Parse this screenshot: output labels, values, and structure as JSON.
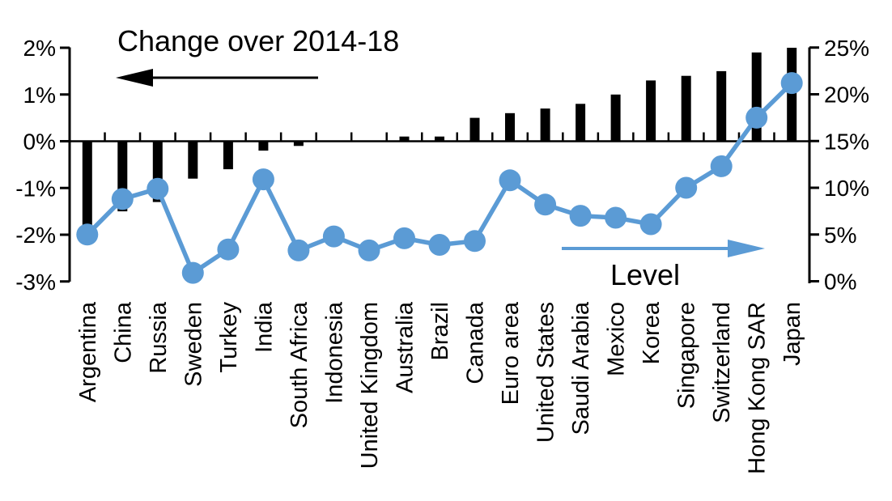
{
  "chart_data": {
    "type": "bar",
    "subtype": "bar-line-combo-dual-axis",
    "title": "",
    "categories": [
      "Argentina",
      "China",
      "Russia",
      "Sweden",
      "Turkey",
      "India",
      "South Africa",
      "Indonesia",
      "United Kingdom",
      "Australia",
      "Brazil",
      "Canada",
      "Euro area",
      "United States",
      "Saudi Arabia",
      "Mexico",
      "Korea",
      "Singapore",
      "Switzerland",
      "Hong Kong SAR",
      "Japan"
    ],
    "series": [
      {
        "name": "Change over 2014-18",
        "type": "bar",
        "axis": "left",
        "color": "#000000",
        "values": [
          -1.8,
          -1.5,
          -1.3,
          -0.8,
          -0.6,
          -0.2,
          -0.1,
          0,
          0,
          0.1,
          0.1,
          0.5,
          0.6,
          0.7,
          0.8,
          1.0,
          1.3,
          1.4,
          1.5,
          1.9,
          2.0
        ]
      },
      {
        "name": "Level",
        "type": "line",
        "axis": "right",
        "color": "#5B9BD5",
        "values": [
          5.0,
          8.8,
          9.9,
          0.9,
          3.4,
          10.9,
          3.3,
          4.8,
          3.3,
          4.6,
          3.9,
          4.3,
          10.8,
          8.2,
          7.0,
          6.8,
          6.1,
          10.0,
          12.3,
          17.5,
          21.2
        ]
      }
    ],
    "left_axis": {
      "tick_labels": [
        "2%",
        "1%",
        "0%",
        "-1%",
        "-2%",
        "-3%"
      ],
      "tick_values": [
        2,
        1,
        0,
        -1,
        -2,
        -3
      ],
      "min": -3,
      "max": 2
    },
    "right_axis": {
      "tick_labels": [
        "25%",
        "20%",
        "15%",
        "10%",
        "5%",
        "0%"
      ],
      "tick_values": [
        25,
        20,
        15,
        10,
        5,
        0
      ],
      "min": 0,
      "max": 25
    },
    "annotations": {
      "bars_label": "Change over 2014-18",
      "line_label": "Level",
      "bars_arrow_direction": "left",
      "line_arrow_direction": "right"
    },
    "legend_position": "none",
    "grid": "off",
    "colors": {
      "bar": "#000000",
      "line": "#5B9BD5",
      "background": "#FFFFFF"
    }
  }
}
